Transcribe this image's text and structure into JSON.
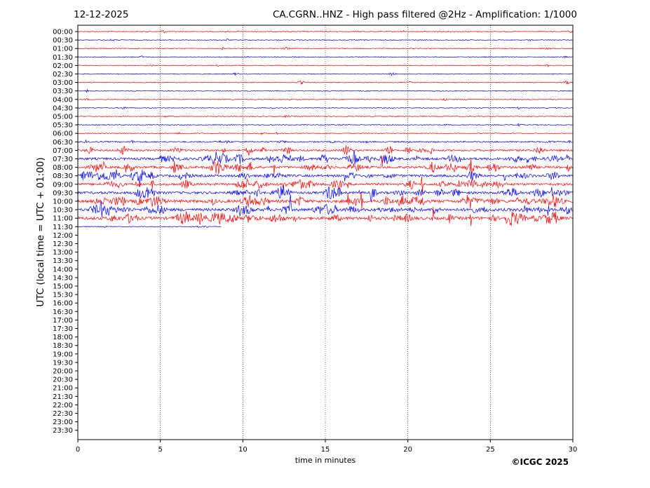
{
  "header": {
    "date": "12-12-2025",
    "title": "CA.CGRN..HNZ - High pass filtered @2Hz - Amplification: 1/1000"
  },
  "footer": {
    "copyright": "©ICGC 2025"
  },
  "colors": {
    "trace_a": "#ff0000",
    "trace_b": "#0000ff",
    "grid": "#000000"
  },
  "chart_data": {
    "type": "line",
    "title": "CA.CGRN..HNZ - High pass filtered @2Hz - Amplification: 1/1000",
    "xlabel": "time in minutes",
    "ylabel": "UTC (local time = UTC + 01:00)",
    "xlim": [
      0,
      30
    ],
    "x_ticks": [
      0,
      5,
      10,
      15,
      20,
      25,
      30
    ],
    "x_grid": "dotted vertical lines at each 5 minutes",
    "row_labels": [
      "00:00",
      "00:30",
      "01:00",
      "01:30",
      "02:00",
      "02:30",
      "03:00",
      "03:30",
      "04:00",
      "04:30",
      "05:00",
      "05:30",
      "06:00",
      "06:30",
      "07:00",
      "07:30",
      "08:00",
      "08:30",
      "09:00",
      "09:30",
      "10:00",
      "10:30",
      "11:00",
      "11:30",
      "12:00",
      "12:30",
      "13:00",
      "13:30",
      "14:00",
      "14:30",
      "15:00",
      "15:30",
      "16:00",
      "16:30",
      "17:00",
      "17:30",
      "18:00",
      "18:30",
      "19:00",
      "19:30",
      "20:00",
      "20:30",
      "21:00",
      "21:30",
      "22:00",
      "22:30",
      "23:00",
      "23:30"
    ],
    "row_colors": "alternating red (even rows) and blue (odd rows)",
    "trace_rows": [
      {
        "label": "00:00",
        "end_minute": 30,
        "activity": 1
      },
      {
        "label": "00:30",
        "end_minute": 30,
        "activity": 1
      },
      {
        "label": "01:00",
        "end_minute": 30,
        "activity": 1
      },
      {
        "label": "01:30",
        "end_minute": 30,
        "activity": 1
      },
      {
        "label": "02:00",
        "end_minute": 30,
        "activity": 1
      },
      {
        "label": "02:30",
        "end_minute": 30,
        "activity": 1
      },
      {
        "label": "03:00",
        "end_minute": 30,
        "activity": 1
      },
      {
        "label": "03:30",
        "end_minute": 30,
        "activity": 1
      },
      {
        "label": "04:00",
        "end_minute": 30,
        "activity": 1
      },
      {
        "label": "04:30",
        "end_minute": 30,
        "activity": 1
      },
      {
        "label": "05:00",
        "end_minute": 30,
        "activity": 1
      },
      {
        "label": "05:30",
        "end_minute": 30,
        "activity": 1
      },
      {
        "label": "06:00",
        "end_minute": 30,
        "activity": 1
      },
      {
        "label": "06:30",
        "end_minute": 30,
        "activity": 2
      },
      {
        "label": "07:00",
        "end_minute": 30,
        "activity": 3
      },
      {
        "label": "07:30",
        "end_minute": 30,
        "activity": 4
      },
      {
        "label": "08:00",
        "end_minute": 30,
        "activity": 4
      },
      {
        "label": "08:30",
        "end_minute": 30,
        "activity": 4
      },
      {
        "label": "09:00",
        "end_minute": 30,
        "activity": 4
      },
      {
        "label": "09:30",
        "end_minute": 30,
        "activity": 4
      },
      {
        "label": "10:00",
        "end_minute": 30,
        "activity": 5
      },
      {
        "label": "10:30",
        "end_minute": 30,
        "activity": 5
      },
      {
        "label": "11:00",
        "end_minute": 30,
        "activity": 5
      },
      {
        "label": "11:30",
        "end_minute": 8.7,
        "activity": 1
      }
    ]
  }
}
